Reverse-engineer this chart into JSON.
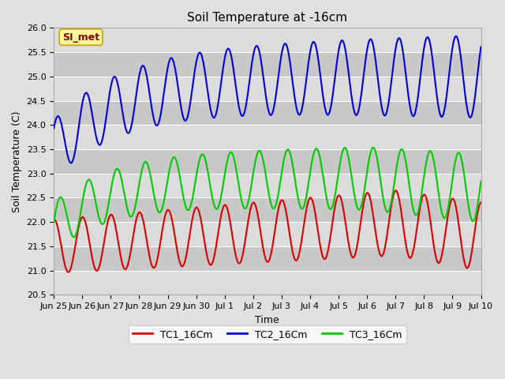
{
  "title": "Soil Temperature at -16cm",
  "xlabel": "Time",
  "ylabel": "Soil Temperature (C)",
  "ylim": [
    20.5,
    26.0
  ],
  "xlim": [
    0,
    15
  ],
  "bg_color": "#e0e0e0",
  "plot_bg_color": "#d4d4d4",
  "grid_color": "#ffffff",
  "stripe_light": "#dcdcdc",
  "stripe_dark": "#c8c8c8",
  "annotation_text": "SI_met",
  "annotation_bg": "#ffff99",
  "annotation_border": "#c8a000",
  "annotation_text_color": "#880000",
  "line_colors": {
    "TC1": "#dd0000",
    "TC2": "#0000dd",
    "TC3": "#00cc00"
  },
  "legend_labels": [
    "TC1_16Cm",
    "TC2_16Cm",
    "TC3_16Cm"
  ],
  "tick_labels": [
    "Jun 25",
    "Jun 26",
    "Jun 27",
    "Jun 28",
    "Jun 29",
    "Jun 30",
    "Jul 1",
    "Jul 2",
    "Jul 3",
    "Jul 4",
    "Jul 5",
    "Jul 6",
    "Jul 7",
    "Jul 8",
    "Jul 9",
    "Jul 10"
  ],
  "yticks": [
    20.5,
    21.0,
    21.5,
    22.0,
    22.5,
    23.0,
    23.5,
    24.0,
    24.5,
    25.0,
    25.5,
    26.0
  ],
  "title_fontsize": 11,
  "axis_label_fontsize": 9,
  "tick_fontsize": 8,
  "legend_fontsize": 9,
  "linewidth": 1.5
}
